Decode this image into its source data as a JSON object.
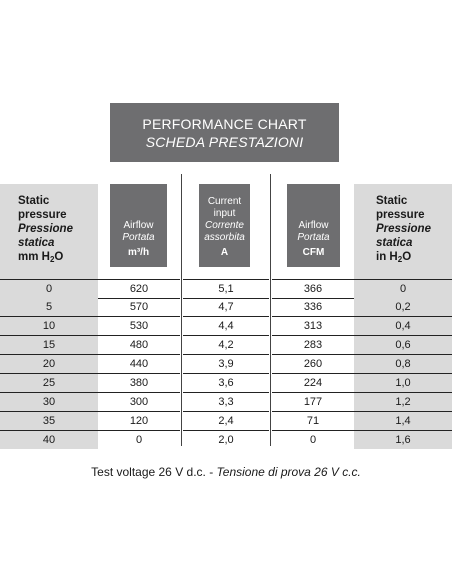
{
  "title": {
    "line1": "PERFORMANCE CHART",
    "line2": "SCHEDA PRESTAZIONI"
  },
  "headers": {
    "left": {
      "l1": "Static",
      "l2": "pressure",
      "l3": "Pressione",
      "l4": "statica",
      "l5": "mm H",
      "sub": "2",
      "l5b": "O"
    },
    "airflow_m3h": {
      "l1": "Airflow",
      "l2": "Portata",
      "unit": "m³/h"
    },
    "current": {
      "l1": "Current",
      "l2": "input",
      "l3": "Corrente",
      "l4": "assorbita",
      "unit": "A"
    },
    "airflow_cfm": {
      "l1": "Airflow",
      "l2": "Portata",
      "unit": "CFM"
    },
    "right": {
      "l1": "Static",
      "l2": "pressure",
      "l3": "Pressione",
      "l4": "statica",
      "l5": "in H",
      "sub": "2",
      "l5b": "O"
    }
  },
  "rows": [
    [
      "0",
      "620",
      "5,1",
      "366",
      "0"
    ],
    [
      "5",
      "570",
      "4,7",
      "336",
      "0,2"
    ],
    [
      "10",
      "530",
      "4,4",
      "313",
      "0,4"
    ],
    [
      "15",
      "480",
      "4,2",
      "283",
      "0,6"
    ],
    [
      "20",
      "440",
      "3,9",
      "260",
      "0,8"
    ],
    [
      "25",
      "380",
      "3,6",
      "224",
      "1,0"
    ],
    [
      "30",
      "300",
      "3,3",
      "177",
      "1,2"
    ],
    [
      "35",
      "120",
      "2,4",
      "71",
      "1,4"
    ],
    [
      "40",
      "0",
      "2,0",
      "0",
      "1,6"
    ]
  ],
  "footer": {
    "normal": "Test voltage 26 V d.c. - ",
    "italic": "Tensione di prova 26 V c.c."
  }
}
